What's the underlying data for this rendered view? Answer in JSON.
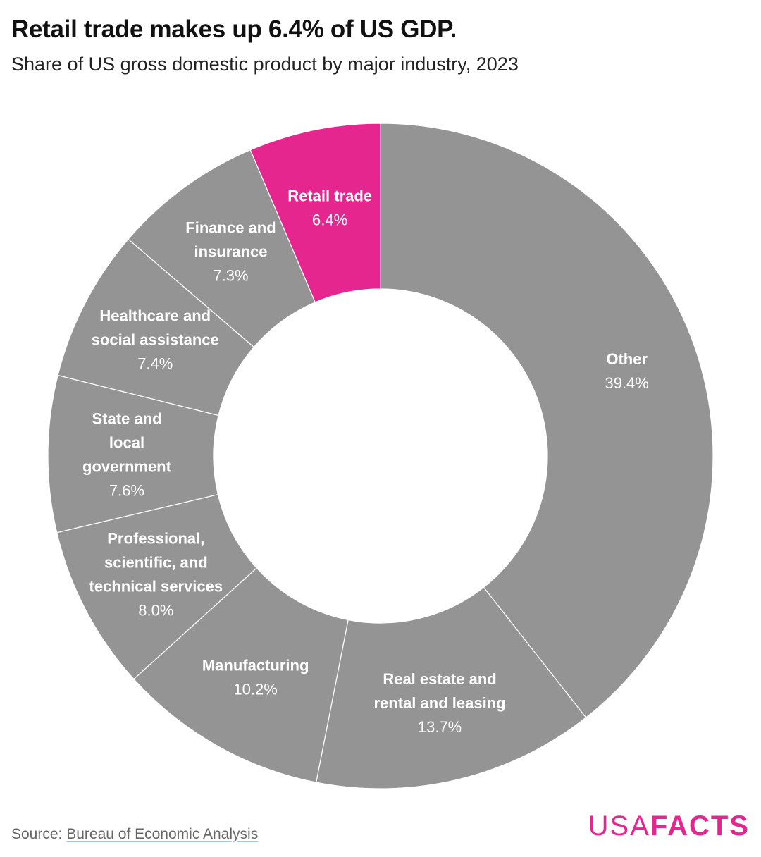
{
  "header": {
    "title": "Retail trade makes up 6.4% of US GDP.",
    "subtitle": "Share of US gross domestic product by major industry, 2023"
  },
  "footer": {
    "source_prefix": "Source: ",
    "source_link": "Bureau of Economic Analysis",
    "brand_part1": "USA",
    "brand_part2": "FACTS"
  },
  "colors": {
    "highlight": "#e6268f",
    "base": "#949494",
    "separator": "#ffffff"
  },
  "chart_data": {
    "type": "pie",
    "title": "Retail trade makes up 6.4% of US GDP.",
    "subtitle": "Share of US gross domestic product by major industry, 2023",
    "slices": [
      {
        "label": [
          "Other"
        ],
        "value": 39.4,
        "value_label": "39.4%",
        "highlight": false
      },
      {
        "label": [
          "Real estate and",
          "rental and leasing"
        ],
        "value": 13.7,
        "value_label": "13.7%",
        "highlight": false
      },
      {
        "label": [
          "Manufacturing"
        ],
        "value": 10.2,
        "value_label": "10.2%",
        "highlight": false
      },
      {
        "label": [
          "Professional,",
          "scientific, and",
          "technical services"
        ],
        "value": 8.0,
        "value_label": "8.0%",
        "highlight": false
      },
      {
        "label": [
          "State and",
          "local",
          "government"
        ],
        "value": 7.6,
        "value_label": "7.6%",
        "highlight": false
      },
      {
        "label": [
          "Healthcare and",
          "social assistance"
        ],
        "value": 7.4,
        "value_label": "7.4%",
        "highlight": false
      },
      {
        "label": [
          "Finance and",
          "insurance"
        ],
        "value": 7.3,
        "value_label": "7.3%",
        "highlight": false
      },
      {
        "label": [
          "Retail trade"
        ],
        "value": 6.4,
        "value_label": "6.4%",
        "highlight": true
      }
    ]
  }
}
